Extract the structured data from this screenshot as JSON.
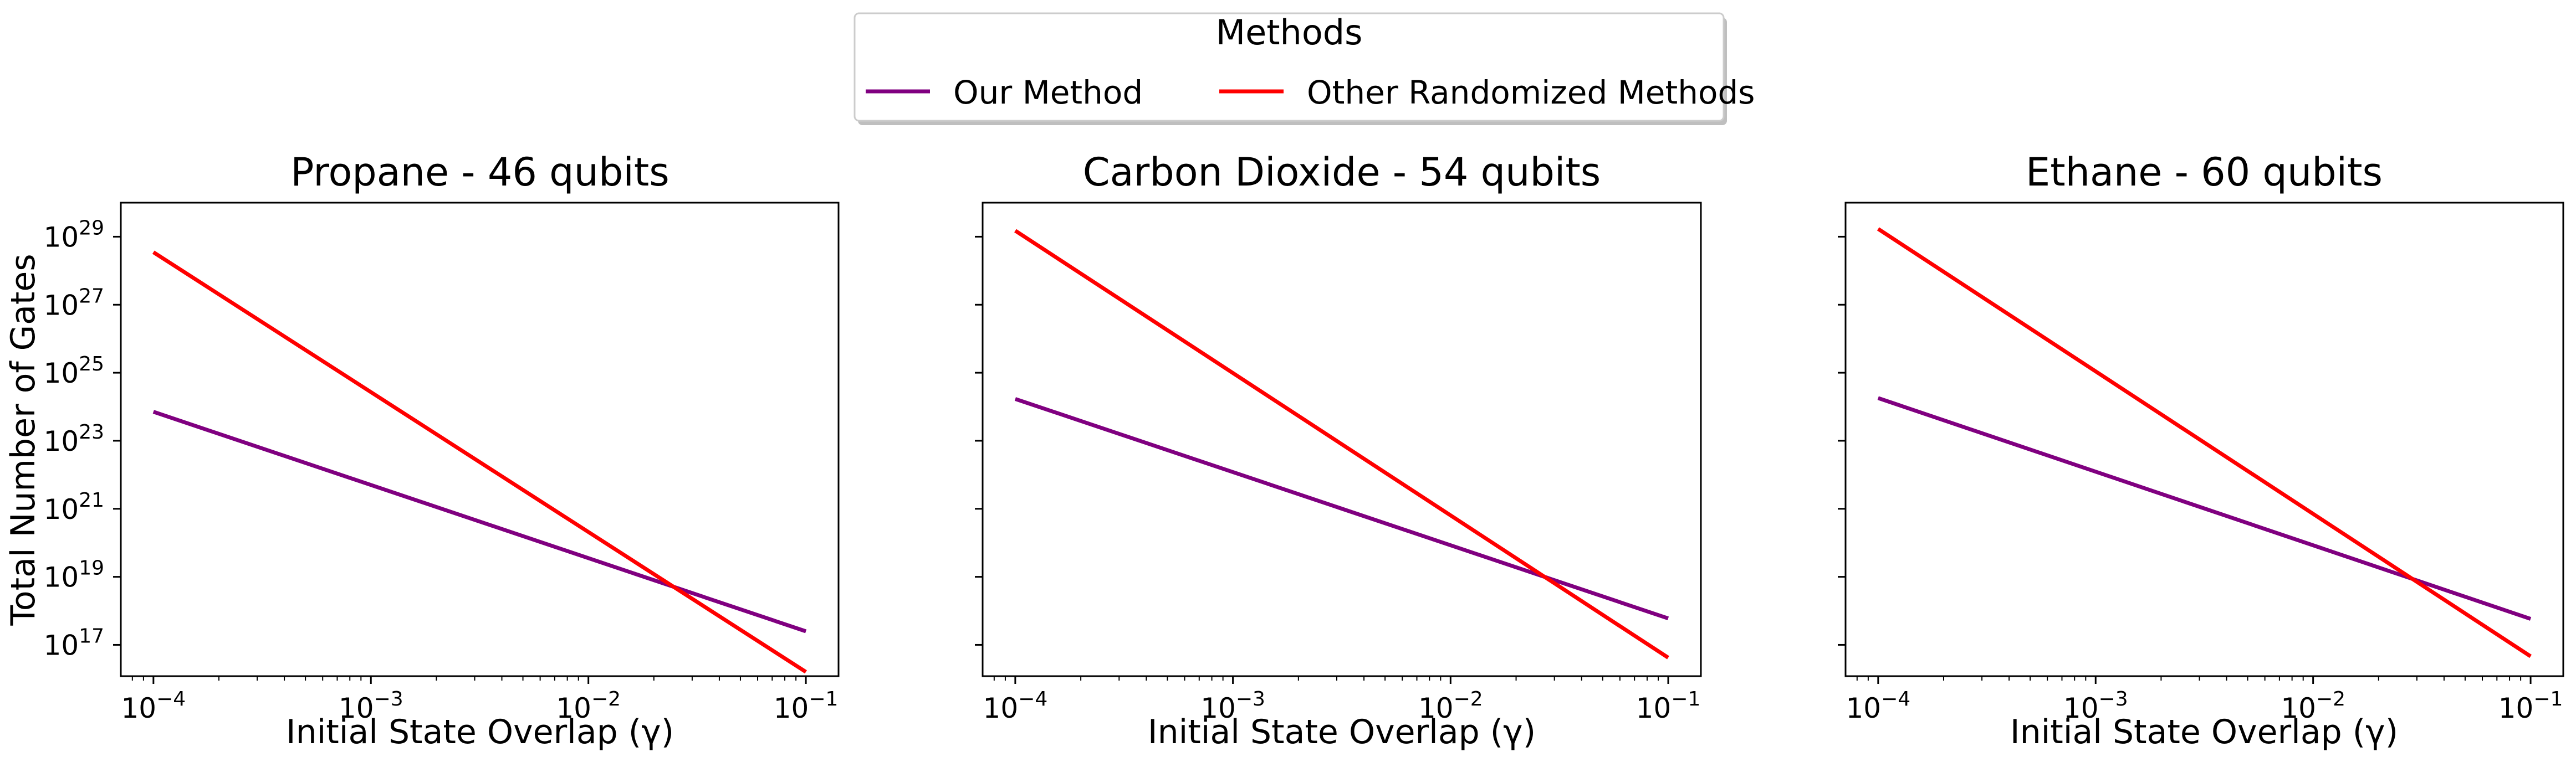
{
  "legend": {
    "title": "Methods",
    "entries": [
      {
        "label": "Our Method",
        "color": "#800080"
      },
      {
        "label": "Other Randomized Methods",
        "color": "#ff0000"
      }
    ]
  },
  "shared": {
    "xlabel": "Initial State Overlap (γ)",
    "ylabel": "Total Number of Gates",
    "x_ticks": [
      {
        "value": 0.0001,
        "base": "10",
        "exp": "−4"
      },
      {
        "value": 0.001,
        "base": "10",
        "exp": "−3"
      },
      {
        "value": 0.01,
        "base": "10",
        "exp": "−2"
      },
      {
        "value": 0.1,
        "base": "10",
        "exp": "−1"
      }
    ],
    "y_ticks": [
      {
        "value": 1e+17,
        "base": "10",
        "exp": "17"
      },
      {
        "value": 1e+19,
        "base": "10",
        "exp": "19"
      },
      {
        "value": 1e+21,
        "base": "10",
        "exp": "21"
      },
      {
        "value": 1e+23,
        "base": "10",
        "exp": "23"
      },
      {
        "value": 1e+25,
        "base": "10",
        "exp": "25"
      },
      {
        "value": 1e+27,
        "base": "10",
        "exp": "27"
      },
      {
        "value": 1e+29,
        "base": "10",
        "exp": "29"
      }
    ]
  },
  "chart_data": [
    {
      "type": "line",
      "title": "Propane - 46 qubits",
      "xlabel": "Initial State Overlap (γ)",
      "ylabel": "Total Number of Gates",
      "xscale": "log",
      "yscale": "log",
      "xlim": [
        7.08e-05,
        0.1413
      ],
      "ylim": [
        1.2e+16,
        1e+30
      ],
      "x": [
        0.0001,
        0.1
      ],
      "series": [
        {
          "name": "Our Method",
          "color": "#800080",
          "values": [
            7.1e+23,
            2.5e+17
          ]
        },
        {
          "name": "Other Randomized Methods",
          "color": "#ff0000",
          "values": [
            3.5e+28,
            1.6e+16
          ]
        }
      ]
    },
    {
      "type": "line",
      "title": "Carbon Dioxide - 54 qubits",
      "xlabel": "Initial State Overlap (γ)",
      "ylabel": "",
      "xscale": "log",
      "yscale": "log",
      "xlim": [
        7.08e-05,
        0.1413
      ],
      "ylim": [
        1.2e+16,
        1e+30
      ],
      "x": [
        0.0001,
        0.1
      ],
      "series": [
        {
          "name": "Our Method",
          "color": "#800080",
          "values": [
            1.7e+24,
            6e+17
          ]
        },
        {
          "name": "Other Randomized Methods",
          "color": "#ff0000",
          "values": [
            1.5e+29,
            4.2e+16
          ]
        }
      ]
    },
    {
      "type": "line",
      "title": "Ethane - 60 qubits",
      "xlabel": "Initial State Overlap (γ)",
      "ylabel": "",
      "xscale": "log",
      "yscale": "log",
      "xlim": [
        7.08e-05,
        0.1413
      ],
      "ylim": [
        1.2e+16,
        1e+30
      ],
      "x": [
        0.0001,
        0.1
      ],
      "series": [
        {
          "name": "Our Method",
          "color": "#800080",
          "values": [
            1.8e+24,
            5.8e+17
          ]
        },
        {
          "name": "Other Randomized Methods",
          "color": "#ff0000",
          "values": [
            1.7e+29,
            4.6e+16
          ]
        }
      ]
    }
  ]
}
